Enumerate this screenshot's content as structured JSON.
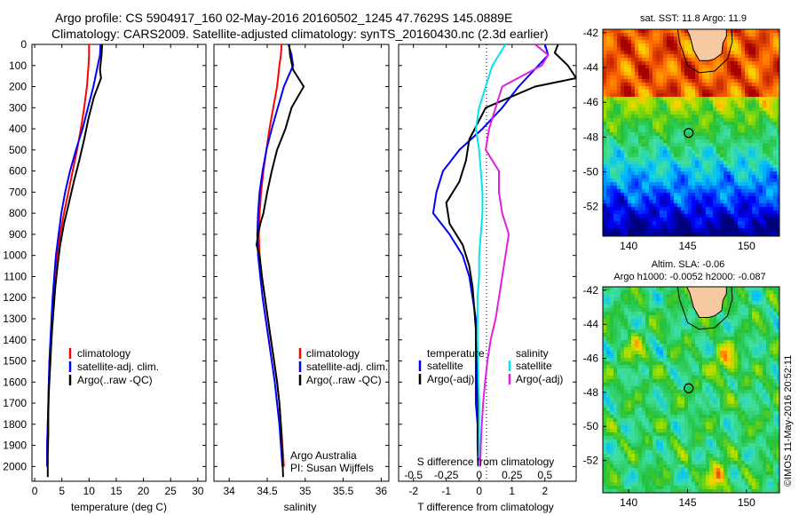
{
  "header": {
    "title_line1": "Argo profile: CS 5904917_160 02-May-2016 20160502_1245 47.7629S 145.0889E",
    "title_line2": "Climatology: CARS2009. Satellite-adjusted climatology: synTS_20160430.nc (2.3d earlier)"
  },
  "colors": {
    "climatology": "#ff0000",
    "satellite": "#0000ff",
    "argo": "#000000",
    "satellite_salinity": "#00e5ee",
    "argo_salinity": "#e020e0"
  },
  "legend": {
    "climatology": "climatology",
    "satellite_adj": "satellite-adj. clim.",
    "argo_raw": "Argo(..raw -QC)",
    "temperature": "temperature",
    "salinity": "salinity",
    "satellite": "satellite",
    "argo_adj": "Argo(-adj)"
  },
  "credits": {
    "org": "Argo Australia",
    "pi": "PI: Susan Wijffels",
    "stamp": "©IMOS 11-May-2016 20:52:11"
  },
  "chart_data": [
    {
      "type": "line",
      "xlabel": "temperature (deg C)",
      "ylabel": "",
      "xlim": [
        -0.5,
        31.5
      ],
      "ylim": [
        2070,
        0
      ],
      "xticks": [
        0,
        5,
        10,
        15,
        20,
        25,
        30
      ],
      "yticks": [
        0,
        100,
        200,
        300,
        400,
        500,
        600,
        700,
        800,
        900,
        1000,
        1100,
        1200,
        1300,
        1400,
        1500,
        1600,
        1700,
        1800,
        1900,
        2000
      ],
      "series": [
        {
          "name": "climatology",
          "color": "#ff0000",
          "x": [
            10.0,
            10.0,
            9.9,
            9.6,
            9.1,
            8.5,
            7.8,
            7.0,
            6.2,
            5.4,
            4.7,
            4.2,
            3.9,
            3.5,
            3.2,
            3.0,
            2.8,
            2.6,
            2.5,
            2.4,
            2.3,
            2.3
          ],
          "y": [
            0,
            50,
            100,
            200,
            300,
            400,
            500,
            600,
            700,
            800,
            900,
            1000,
            1100,
            1200,
            1300,
            1400,
            1500,
            1600,
            1700,
            1800,
            1900,
            2000
          ]
        },
        {
          "name": "satellite-adj. clim.",
          "color": "#0000ff",
          "x": [
            12.1,
            12.0,
            11.6,
            10.8,
            9.8,
            8.8,
            7.6,
            6.5,
            5.6,
            4.9,
            4.4,
            3.9,
            3.6,
            3.3,
            3.1,
            2.9,
            2.7,
            2.6,
            2.5,
            2.4,
            2.3,
            2.3
          ],
          "y": [
            0,
            50,
            100,
            200,
            300,
            400,
            500,
            600,
            700,
            800,
            900,
            1000,
            1100,
            1200,
            1300,
            1400,
            1500,
            1600,
            1700,
            1800,
            1900,
            2000
          ]
        },
        {
          "name": "Argo(..raw -QC)",
          "color": "#000000",
          "x": [
            12.4,
            12.3,
            12.0,
            12.2,
            10.9,
            9.9,
            9.1,
            8.2,
            7.2,
            6.3,
            5.4,
            4.7,
            4.2,
            3.8,
            3.5,
            3.2,
            3.0,
            2.8,
            2.6,
            2.5,
            2.5,
            2.4,
            2.4,
            2.4
          ],
          "y": [
            0,
            50,
            120,
            160,
            250,
            350,
            450,
            550,
            650,
            750,
            850,
            950,
            1050,
            1150,
            1250,
            1350,
            1450,
            1550,
            1650,
            1750,
            1850,
            1950,
            2000,
            2050
          ]
        }
      ]
    },
    {
      "type": "line",
      "xlabel": "salinity",
      "ylabel": "",
      "xlim": [
        33.8,
        36.1
      ],
      "ylim": [
        2070,
        0
      ],
      "xticks": [
        34,
        34.5,
        35,
        35.5,
        36
      ],
      "yticks": [
        0,
        100,
        200,
        300,
        400,
        500,
        600,
        700,
        800,
        900,
        1000,
        1100,
        1200,
        1300,
        1400,
        1500,
        1600,
        1700,
        1800,
        1900,
        2000
      ],
      "series": [
        {
          "name": "climatology",
          "color": "#ff0000",
          "x": [
            34.69,
            34.68,
            34.66,
            34.63,
            34.58,
            34.53,
            34.49,
            34.45,
            34.42,
            34.4,
            34.39,
            34.4,
            34.43,
            34.47,
            34.51,
            34.55,
            34.59,
            34.63,
            34.66,
            34.68,
            34.7,
            34.72
          ],
          "y": [
            0,
            50,
            100,
            200,
            300,
            400,
            500,
            600,
            700,
            800,
            900,
            1000,
            1100,
            1200,
            1300,
            1400,
            1500,
            1600,
            1700,
            1800,
            1900,
            2000
          ]
        },
        {
          "name": "satellite-adj. clim.",
          "color": "#0000ff",
          "x": [
            34.78,
            34.82,
            34.84,
            34.72,
            34.64,
            34.56,
            34.49,
            34.44,
            34.4,
            34.38,
            34.37,
            34.38,
            34.41,
            34.44,
            34.48,
            34.52,
            34.56,
            34.6,
            34.63,
            34.66,
            34.68,
            34.7
          ],
          "y": [
            0,
            50,
            100,
            200,
            300,
            400,
            500,
            600,
            700,
            800,
            900,
            1000,
            1100,
            1200,
            1300,
            1400,
            1500,
            1600,
            1700,
            1800,
            1900,
            2000
          ]
        },
        {
          "name": "Argo(..raw -QC)",
          "color": "#000000",
          "x": [
            34.79,
            34.8,
            34.84,
            34.98,
            34.82,
            34.74,
            34.63,
            34.56,
            34.5,
            34.45,
            34.41,
            34.38,
            34.36,
            34.4,
            34.43,
            34.47,
            34.51,
            34.55,
            34.59,
            34.63,
            34.66,
            34.69,
            34.71
          ],
          "y": [
            0,
            50,
            120,
            200,
            300,
            400,
            500,
            600,
            700,
            800,
            850,
            900,
            950,
            1000,
            1100,
            1200,
            1300,
            1400,
            1500,
            1600,
            1700,
            1850,
            2050
          ]
        }
      ]
    },
    {
      "type": "line",
      "xlabel": "T difference from climatology",
      "xlabel2": "S difference from climatology",
      "ylabel": "",
      "xlim": [
        -2.45,
        2.95
      ],
      "ylim": [
        2070,
        0
      ],
      "xticks_T": [
        -2,
        -1,
        0,
        1,
        2
      ],
      "xticks_S": [
        -0.5,
        -0.25,
        0,
        0.25,
        0.5
      ],
      "series": [
        {
          "name": "satellite (temperature)",
          "color": "#0000ff",
          "x": [
            2.0,
            2.1,
            1.8,
            1.2,
            0.7,
            0.1,
            -0.6,
            -1.1,
            -1.3,
            -1.4,
            -0.9,
            -0.5,
            -0.3,
            -0.2,
            -0.1,
            -0.1,
            -0.1,
            -0.1,
            -0.1,
            -0.05,
            -0.05,
            -0.03
          ],
          "y": [
            0,
            50,
            100,
            200,
            300,
            400,
            500,
            600,
            700,
            800,
            900,
            1000,
            1100,
            1200,
            1300,
            1400,
            1500,
            1600,
            1700,
            1800,
            1900,
            2000
          ]
        },
        {
          "name": "Argo(-adj) (temperature)",
          "color": "#000000",
          "x": [
            2.4,
            2.3,
            2.7,
            2.95,
            1.7,
            0.2,
            -0.3,
            -0.4,
            -0.6,
            -1.0,
            -0.9,
            -0.5,
            -0.3,
            -0.2,
            -0.15,
            -0.1,
            -0.08,
            -0.05,
            -0.05,
            -0.03,
            -0.03,
            -0.02
          ],
          "y": [
            0,
            40,
            100,
            160,
            200,
            300,
            450,
            550,
            650,
            750,
            850,
            950,
            1050,
            1150,
            1250,
            1350,
            1450,
            1550,
            1650,
            1750,
            1850,
            1950
          ]
        },
        {
          "name": "satellite (salinity)",
          "color": "#00e5ee",
          "x": [
            0.8,
            0.6,
            0.4,
            0.2,
            0.0,
            -0.1,
            0.0,
            0.05,
            0.1,
            0.1,
            0.05,
            0.0,
            0.0,
            -0.05,
            -0.05,
            -0.05,
            -0.03,
            -0.02,
            0.0,
            0.0,
            0.0,
            0.0
          ],
          "y": [
            0,
            50,
            100,
            200,
            300,
            400,
            500,
            600,
            700,
            800,
            900,
            1000,
            1100,
            1200,
            1300,
            1400,
            1500,
            1600,
            1700,
            1800,
            1900,
            2000
          ]
        },
        {
          "name": "Argo(-adj) (salinity)",
          "color": "#e020e0",
          "x": [
            1.7,
            2.1,
            1.9,
            0.7,
            0.5,
            0.3,
            0.2,
            0.6,
            0.6,
            0.7,
            0.9,
            0.8,
            0.7,
            0.6,
            0.5,
            0.35,
            0.25,
            0.18,
            0.12,
            0.08,
            0.05,
            0.03
          ],
          "y": [
            0,
            50,
            100,
            200,
            300,
            400,
            500,
            600,
            700,
            800,
            900,
            1000,
            1100,
            1200,
            1300,
            1400,
            1500,
            1600,
            1700,
            1800,
            1900,
            2000
          ]
        }
      ]
    },
    {
      "type": "heatmap",
      "title": "sat. SST: 11.8 Argo: 11.9",
      "xlim": [
        137.8,
        152.8
      ],
      "ylim": [
        -53.7,
        -41.8
      ],
      "xticks": [
        140,
        145,
        150
      ],
      "yticks": [
        -42,
        -44,
        -46,
        -48,
        -50,
        -52
      ],
      "marker": {
        "lon": 145.09,
        "lat": -47.76
      }
    },
    {
      "type": "heatmap",
      "title": "Altim. SLA: -0.06",
      "subtitle": "Argo h1000: -0.0052 h2000: -0.087",
      "xlim": [
        137.8,
        152.8
      ],
      "ylim": [
        -53.9,
        -41.8
      ],
      "xticks": [
        140,
        145,
        150
      ],
      "yticks": [
        -42,
        -44,
        -46,
        -48,
        -50,
        -52
      ],
      "marker": {
        "lon": 145.09,
        "lat": -47.76
      }
    }
  ]
}
